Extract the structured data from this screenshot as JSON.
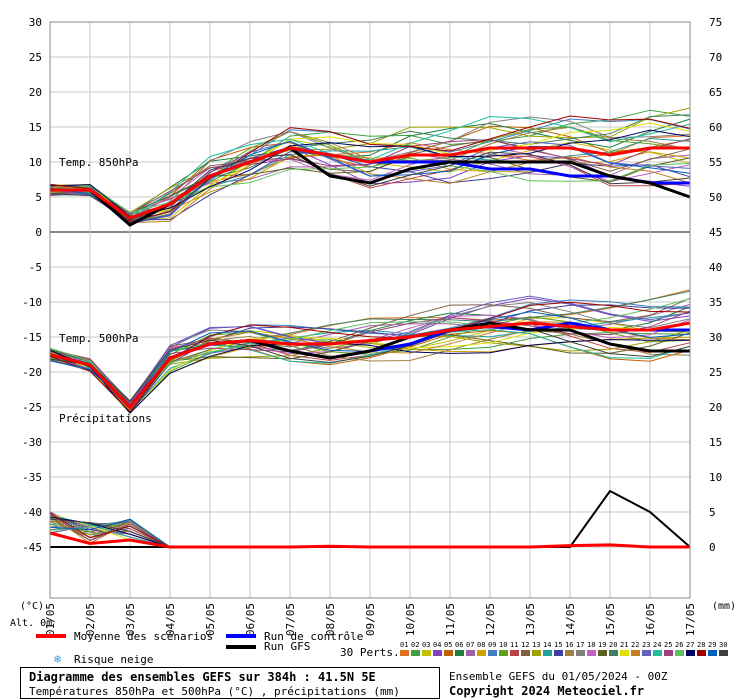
{
  "chart_data": {
    "type": "line",
    "x_tick_labels": [
      "01/05",
      "02/05",
      "03/05",
      "04/05",
      "05/05",
      "06/05",
      "07/05",
      "08/05",
      "09/05",
      "10/05",
      "11/05",
      "12/05",
      "13/05",
      "14/05",
      "15/05",
      "16/05",
      "17/05"
    ],
    "left_axis_ticks": [
      30,
      25,
      20,
      15,
      10,
      5,
      0,
      -5,
      -10,
      -15,
      -20,
      -25,
      -30,
      -35,
      -40,
      -45
    ],
    "right_axis_ticks": [
      75,
      70,
      65,
      60,
      55,
      50,
      45,
      40,
      35,
      30,
      25,
      20,
      15,
      10,
      5,
      0
    ],
    "left_unit_label": "(°C)",
    "right_unit_label": "(mm)",
    "alt_label": "Alt. 0m",
    "panel_labels": {
      "t850": "Temp. 850hPa",
      "t500": "Temp. 500hPa",
      "precip": "Précipitations"
    },
    "ensemble_mean_850": [
      6,
      6,
      2,
      4,
      8,
      10,
      12,
      11,
      10,
      11,
      11,
      12,
      12,
      12,
      11,
      12,
      12
    ],
    "control_850": [
      6,
      6,
      1,
      4,
      8,
      10,
      12,
      11,
      10,
      10,
      10,
      9,
      9,
      8,
      8,
      7,
      7
    ],
    "gfs_850": [
      6,
      6,
      1,
      4,
      8,
      10,
      12,
      8,
      7,
      9,
      10,
      10,
      10,
      10,
      8,
      7,
      5
    ],
    "ensemble_mean_500": [
      -17.5,
      -19,
      -25,
      -18,
      -16,
      -15.5,
      -16,
      -16,
      -15.5,
      -15,
      -14,
      -13.5,
      -13,
      -13.5,
      -14,
      -14,
      -13
    ],
    "control_500": [
      -17.5,
      -19,
      -25,
      -18,
      -16,
      -15.5,
      -17,
      -18,
      -17,
      -16,
      -14,
      -13.5,
      -14,
      -13,
      -14,
      -14,
      -14
    ],
    "gfs_500": [
      -17.5,
      -19,
      -25,
      -18,
      -16,
      -15.5,
      -17,
      -18,
      -17,
      -15,
      -14,
      -13,
      -14,
      -14,
      -16,
      -17,
      -17
    ],
    "ensemble_mean_precip": [
      2,
      0.5,
      1,
      0,
      0,
      0,
      0,
      0.1,
      0,
      0,
      0,
      0,
      0,
      0.2,
      0.3,
      0,
      0
    ],
    "gfs_precip": [
      0,
      0,
      0,
      0,
      0,
      0,
      0,
      0,
      0,
      0,
      0,
      0,
      0,
      0,
      8,
      5,
      0
    ]
  },
  "legend": {
    "mean": "Moyenne des scénarios",
    "control": "Run de contrôle",
    "gfs": "Run GFS",
    "snow": "Risque neige",
    "perts_label": "30 Perts.",
    "perts_numbers": [
      "01",
      "02",
      "03",
      "04",
      "05",
      "06",
      "07",
      "08",
      "09",
      "10",
      "11",
      "12",
      "13",
      "14",
      "15",
      "16",
      "17",
      "18",
      "19",
      "20",
      "21",
      "22",
      "23",
      "24",
      "25",
      "26",
      "27",
      "28",
      "29",
      "30"
    ],
    "perts_colors": [
      "#e07020",
      "#40a040",
      "#c0c000",
      "#8040c0",
      "#c06000",
      "#208040",
      "#a060a0",
      "#d0a000",
      "#4080c0",
      "#60a020",
      "#c04040",
      "#806040",
      "#a0a000",
      "#20a0a0",
      "#4040a0",
      "#a08040",
      "#808080",
      "#c060c0",
      "#606020",
      "#408060",
      "#e0e000",
      "#c08020",
      "#6060c0",
      "#20c0a0",
      "#a04080",
      "#60c060",
      "#000060",
      "#a00000",
      "#0060c0",
      "#404040"
    ],
    "colors": {
      "mean": "#ff0000",
      "control": "#0000ff",
      "gfs": "#000000"
    }
  },
  "footer": {
    "title": "Diagramme des ensembles GEFS sur 384h : 41.5N 5E",
    "subtitle": "Températures 850hPa et 500hPa (°C) , précipitations (mm)",
    "credit_line1": "Ensemble GEFS du 01/05/2024 - 00Z",
    "credit_line2": "Copyright 2024 Meteociel.fr"
  }
}
